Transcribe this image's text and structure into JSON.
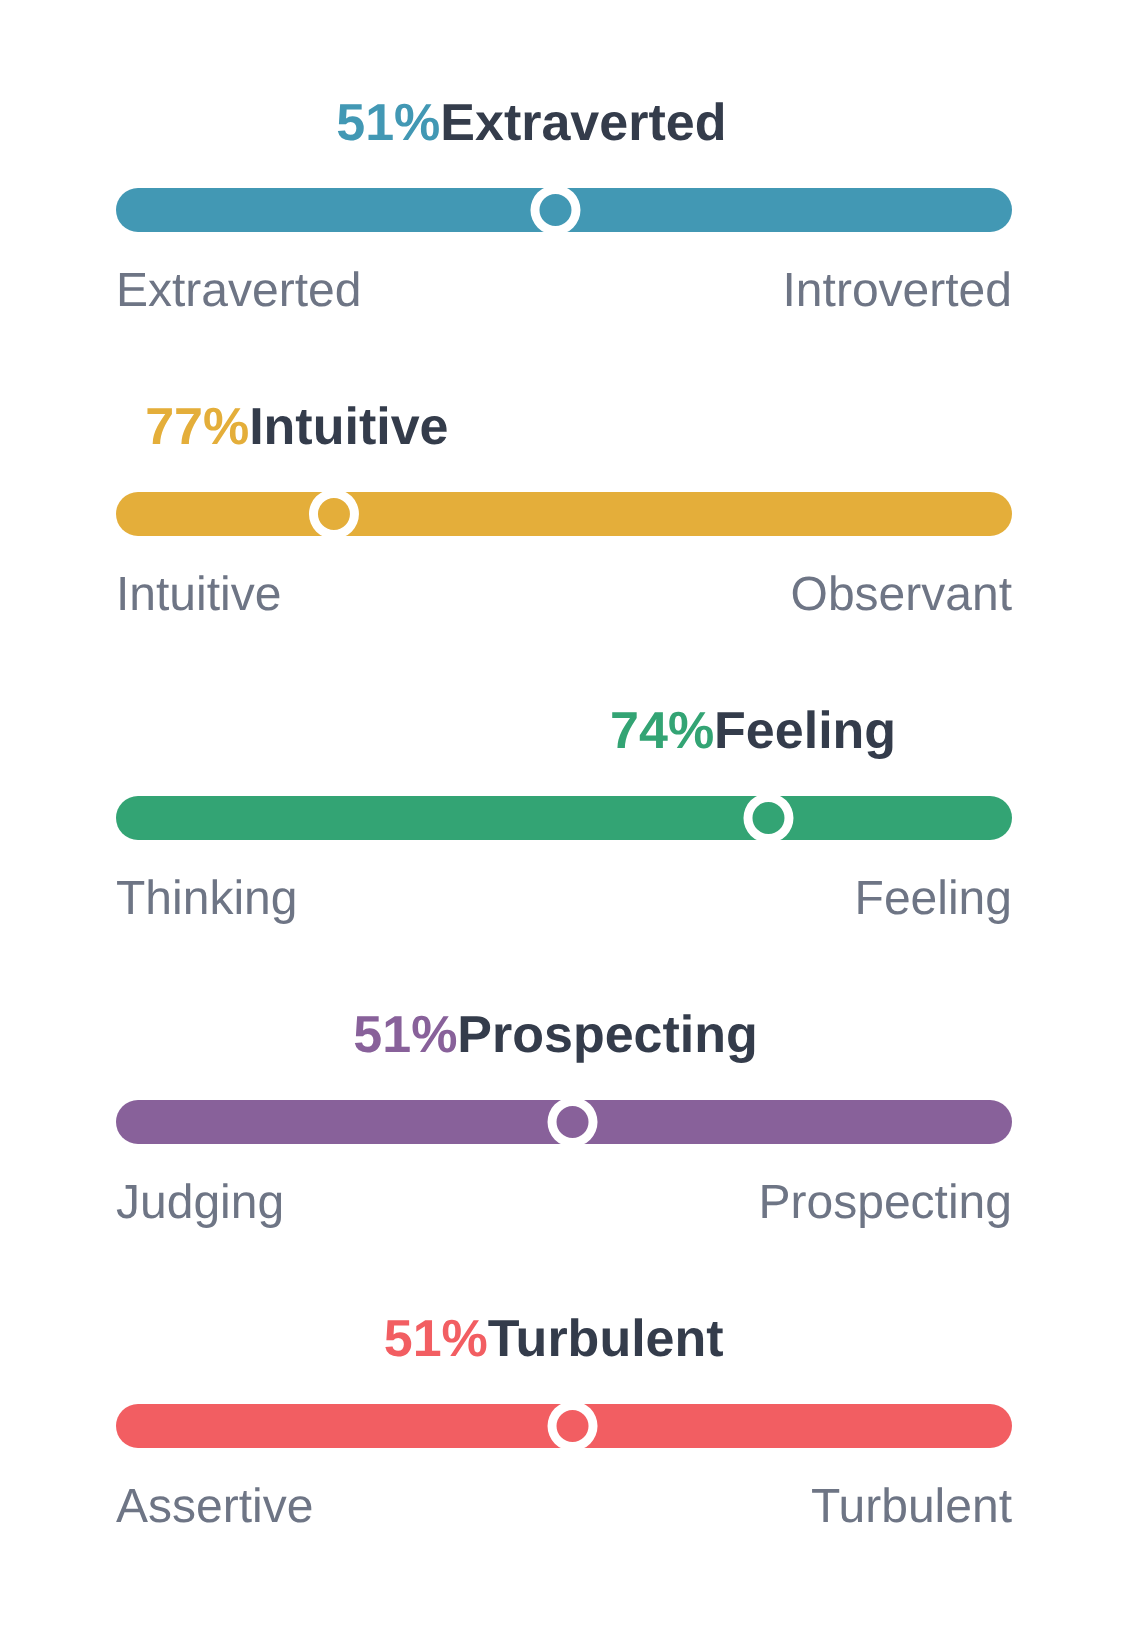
{
  "chart_data": [
    {
      "type": "other",
      "categories": [
        "Extraverted",
        "Introverted"
      ],
      "needle": "Extraverted",
      "values": [
        51,
        null
      ],
      "value_labels": [
        "51%",
        null
      ],
      "color": "#4298b4"
    },
    {
      "type": "other",
      "categories": [
        "Intuitive",
        "Observant"
      ],
      "needle": "Intuitive",
      "values": [
        77,
        null
      ],
      "value_labels": [
        "77%",
        null
      ],
      "color": "#e4ae3a"
    },
    {
      "type": "other",
      "categories": [
        "Thinking",
        "Feeling"
      ],
      "needle": "Feeling",
      "values": [
        null,
        74
      ],
      "value_labels": [
        null,
        "74%"
      ],
      "color": "#33a474"
    },
    {
      "type": "other",
      "categories": [
        "Judging",
        "Prospecting"
      ],
      "needle": "Prospecting",
      "values": [
        null,
        51
      ],
      "value_labels": [
        null,
        "51%"
      ],
      "color": "#88619a"
    },
    {
      "type": "other",
      "categories": [
        "Assertive",
        "Turbulent"
      ],
      "needle": "Turbulent",
      "values": [
        null,
        51
      ],
      "value_labels": [
        null,
        "51%"
      ],
      "color": "#f25e62"
    }
  ]
}
